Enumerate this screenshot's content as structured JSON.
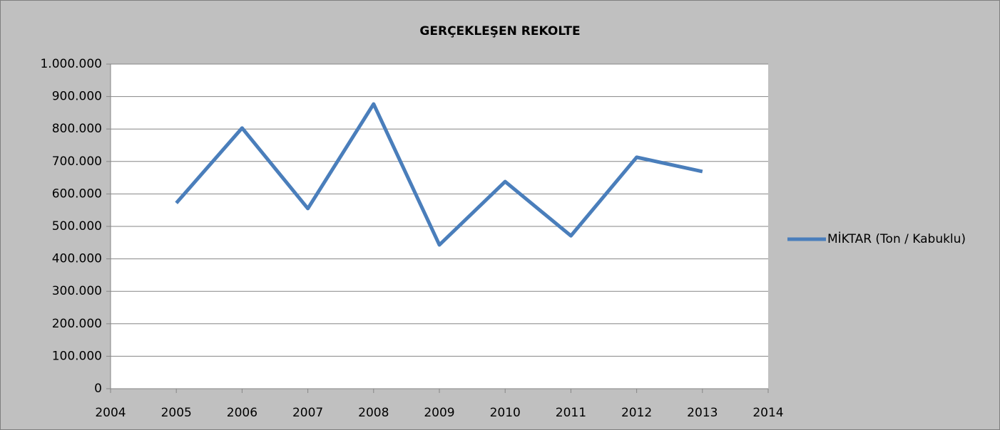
{
  "chart_data": {
    "type": "line",
    "title": "GERÇEKLEŞEN REKOLTE",
    "x": [
      2005,
      2006,
      2007,
      2008,
      2009,
      2010,
      2011,
      2012,
      2013
    ],
    "series": [
      {
        "name": "MİKTAR (Ton / Kabuklu)",
        "color": "#4a7ebb",
        "values": [
          572000,
          803000,
          555000,
          877000,
          443000,
          638000,
          471000,
          713000,
          669000
        ]
      }
    ],
    "xlim": [
      2004,
      2014
    ],
    "xticks": [
      2004,
      2005,
      2006,
      2007,
      2008,
      2009,
      2010,
      2011,
      2012,
      2013,
      2014
    ],
    "ylim": [
      0,
      1000000
    ],
    "yticks": [
      0,
      {
        "value": 100000,
        "label": "100.000"
      },
      {
        "value": 200000,
        "label": "200.000"
      },
      {
        "value": 300000,
        "label": "300.000"
      },
      {
        "value": 400000,
        "label": "400.000"
      },
      {
        "value": 500000,
        "label": "500.000"
      },
      {
        "value": 600000,
        "label": "600.000"
      },
      {
        "value": 700000,
        "label": "700.000"
      },
      {
        "value": 800000,
        "label": "800.000"
      },
      {
        "value": 900000,
        "label": "900.000"
      },
      {
        "value": 1000000,
        "label": "1.000.000"
      }
    ],
    "grid": true,
    "legend": "right"
  }
}
